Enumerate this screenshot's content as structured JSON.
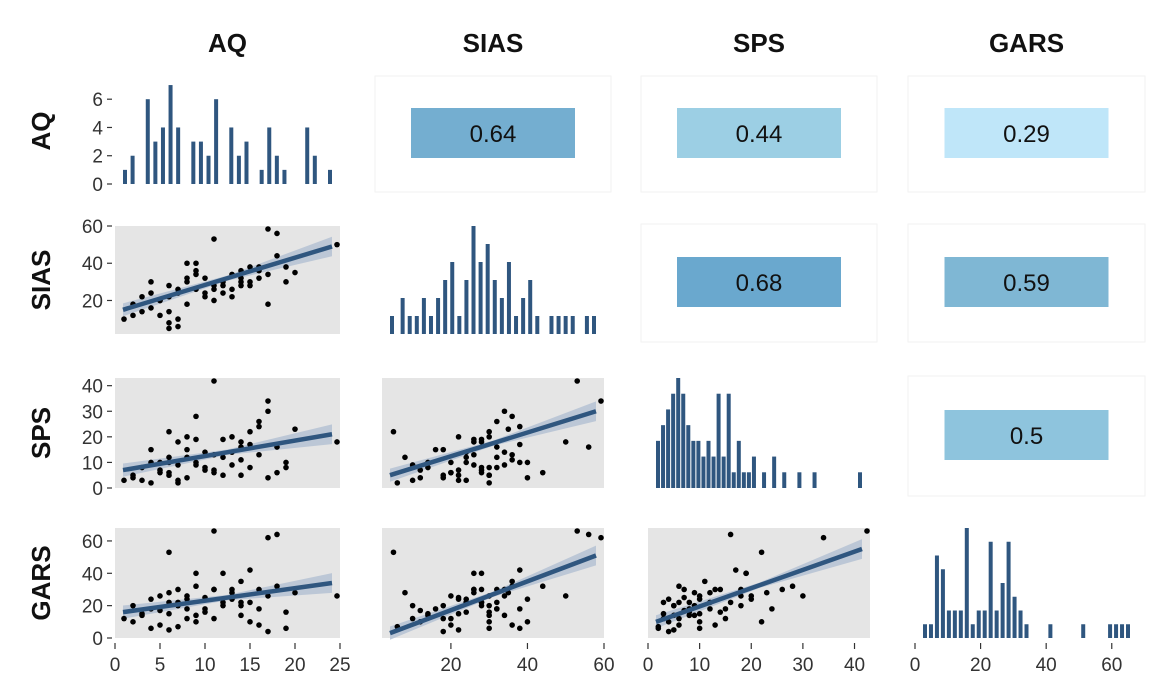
{
  "chart_data": {
    "type": "scatter",
    "variables": [
      "AQ",
      "SIAS",
      "SPS",
      "GARS"
    ],
    "colors": {
      "bar": "#2f567f",
      "line": "#2f567f",
      "ribbon": "#b5c2d4",
      "panel": "#e5e5e5",
      "point": "#000000"
    },
    "ticks": {
      "AQ": [
        "0",
        "5",
        "10",
        "15",
        "20",
        "25"
      ],
      "SIAS": [
        "20",
        "40",
        "60"
      ],
      "SPS": [
        "0",
        "10",
        "20",
        "30",
        "40"
      ],
      "GARS": [
        "0",
        "20",
        "40",
        "60"
      ],
      "AQ_count": [
        "0",
        "2",
        "4",
        "6"
      ]
    },
    "correlations": [
      {
        "pair": "AQ-SIAS",
        "label": "0.64",
        "value": 0.64,
        "color": "#74aed0"
      },
      {
        "pair": "AQ-SPS",
        "label": "0.44",
        "value": 0.44,
        "color": "#9ccfe4"
      },
      {
        "pair": "AQ-GARS",
        "label": "0.29",
        "value": 0.29,
        "color": "#bfe6f9"
      },
      {
        "pair": "SIAS-SPS",
        "label": "0.68",
        "value": 0.68,
        "color": "#6aa8ce"
      },
      {
        "pair": "SIAS-GARS",
        "label": "0.59",
        "value": 0.59,
        "color": "#7fb7d4"
      },
      {
        "pair": "SPS-GARS",
        "label": "0.5",
        "value": 0.5,
        "color": "#8ec4dd"
      }
    ],
    "histograms": {
      "AQ": {
        "x": [
          1,
          2,
          4,
          5,
          6,
          7,
          8,
          10,
          11,
          12,
          13,
          15,
          16,
          17,
          19,
          20,
          21,
          22,
          25,
          26,
          28
        ],
        "counts": [
          1,
          2,
          6,
          3,
          4,
          7,
          4,
          3,
          3,
          2,
          6,
          4,
          2,
          3,
          1,
          4,
          2,
          1,
          4,
          2,
          1
        ]
      },
      "SIAS": {
        "x": [
          3,
          6,
          8,
          10,
          12,
          14,
          16,
          18,
          20,
          22,
          24,
          26,
          28,
          30,
          32,
          34,
          36,
          38,
          40,
          42,
          44,
          46,
          48,
          50,
          52,
          54,
          56,
          58,
          60
        ],
        "counts": [
          1,
          2,
          1,
          1,
          2,
          1,
          2,
          3,
          4,
          1,
          3,
          6,
          4,
          5,
          3,
          2,
          4,
          1,
          2,
          3,
          1,
          0,
          1,
          1,
          1,
          1,
          0,
          1,
          1
        ]
      },
      "SPS": {
        "x": [
          2,
          3,
          4,
          5,
          6,
          7,
          8,
          9,
          10,
          11,
          12,
          13,
          14,
          15,
          16,
          17,
          18,
          19,
          20,
          21,
          23,
          25,
          27,
          30,
          33,
          42
        ],
        "counts": [
          3,
          4,
          5,
          6,
          7,
          6,
          4,
          3,
          3,
          2,
          3,
          2,
          6,
          2,
          6,
          1,
          3,
          1,
          1,
          2,
          1,
          2,
          1,
          1,
          1,
          1
        ]
      },
      "GARS": {
        "x": [
          0,
          2,
          4,
          6,
          8,
          10,
          12,
          14,
          16,
          18,
          20,
          22,
          24,
          26,
          28,
          30,
          32,
          34,
          36,
          42,
          53,
          62,
          64,
          66,
          68
        ],
        "counts": [
          1,
          1,
          6,
          5,
          2,
          2,
          2,
          8,
          1,
          2,
          2,
          7,
          2,
          4,
          7,
          3,
          2,
          1,
          0,
          1,
          1,
          1,
          1,
          1,
          1
        ]
      }
    },
    "scatter": {
      "AQ": [
        1,
        2,
        3,
        4,
        2,
        3,
        4,
        5,
        6,
        4,
        5,
        6,
        7,
        8,
        5,
        6,
        7,
        8,
        9,
        6,
        7,
        8,
        9,
        10,
        7,
        8,
        9,
        10,
        11,
        12,
        10,
        11,
        12,
        13,
        14,
        11,
        12,
        13,
        14,
        15,
        13,
        14,
        15,
        16,
        17,
        15,
        16,
        17,
        18,
        19,
        17,
        18,
        19,
        20,
        25,
        6,
        9,
        11,
        14,
        16
      ],
      "SIAS": [
        10,
        18,
        22,
        24,
        12,
        14,
        16,
        20,
        28,
        30,
        12,
        8,
        26,
        40,
        20,
        14,
        10,
        18,
        36,
        22,
        24,
        32,
        40,
        22,
        6,
        30,
        34,
        24,
        26,
        28,
        32,
        53,
        24,
        26,
        28,
        20,
        30,
        34,
        36,
        38,
        22,
        30,
        28,
        32,
        34,
        30,
        36,
        60,
        56,
        38,
        18,
        44,
        30,
        35,
        50,
        5,
        26,
        28,
        32,
        38
      ],
      "SPS": [
        3,
        5,
        3,
        10,
        4,
        8,
        15,
        10,
        6,
        2,
        7,
        12,
        18,
        4,
        6,
        10,
        9,
        15,
        28,
        5,
        3,
        12,
        10,
        7,
        2,
        20,
        9,
        14,
        13,
        19,
        8,
        43,
        12,
        9,
        18,
        6,
        5,
        14,
        11,
        17,
        20,
        5,
        8,
        26,
        30,
        22,
        13,
        34,
        16,
        10,
        4,
        6,
        8,
        23,
        18,
        22,
        19,
        7,
        16,
        24
      ],
      "GARS": [
        12,
        20,
        15,
        24,
        10,
        14,
        18,
        26,
        22,
        6,
        17,
        28,
        30,
        24,
        8,
        15,
        20,
        12,
        32,
        5,
        22,
        18,
        10,
        25,
        7,
        26,
        14,
        16,
        30,
        40,
        18,
        67,
        22,
        28,
        20,
        12,
        20,
        30,
        35,
        42,
        24,
        14,
        22,
        30,
        26,
        10,
        8,
        62,
        64,
        6,
        4,
        32,
        16,
        28,
        26,
        53,
        40,
        30,
        22,
        18
      ]
    },
    "fits": [
      {
        "xvar": "AQ",
        "yvar": "SIAS",
        "y0": 15,
        "y1": 49
      },
      {
        "xvar": "AQ",
        "yvar": "SPS",
        "y0": 7,
        "y1": 21
      },
      {
        "xvar": "AQ",
        "yvar": "GARS",
        "y0": 16,
        "y1": 34
      },
      {
        "xvar": "SIAS",
        "yvar": "SPS",
        "y0": 5,
        "y1": 30
      },
      {
        "xvar": "SIAS",
        "yvar": "GARS",
        "y0": 3,
        "y1": 51
      },
      {
        "xvar": "SPS",
        "yvar": "GARS",
        "y0": 10,
        "y1": 55
      }
    ],
    "grid": false,
    "legend": "none"
  }
}
